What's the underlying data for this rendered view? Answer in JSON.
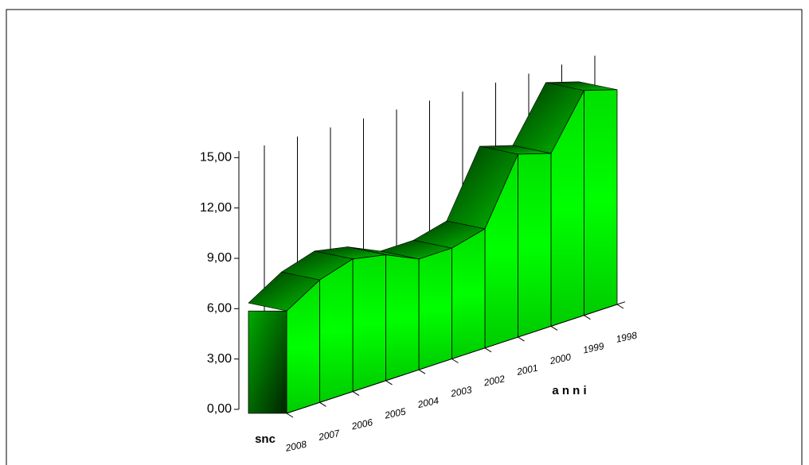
{
  "chart_data": {
    "type": "area3d",
    "categories": [
      "2008",
      "2007",
      "2006",
      "2005",
      "2004",
      "2003",
      "2002",
      "2001",
      "2000",
      "1999",
      "1998"
    ],
    "series": [
      {
        "name": "snc",
        "color": "#00ff00",
        "values": [
          6.1,
          7.3,
          7.9,
          7.5,
          6.6,
          6.6,
          7.1,
          10.9,
          10.3,
          13.4,
          12.8
        ]
      }
    ],
    "x_label": "a n n i",
    "ylim": [
      0,
      18
    ],
    "yticks": [
      {
        "value": 0,
        "label": "0,00"
      },
      {
        "value": 3,
        "label": "3,00"
      },
      {
        "value": 6,
        "label": "6,00"
      },
      {
        "value": 9,
        "label": "9,00"
      },
      {
        "value": 12,
        "label": "12,00"
      },
      {
        "value": 15,
        "label": "15,00"
      }
    ],
    "grid": true
  }
}
